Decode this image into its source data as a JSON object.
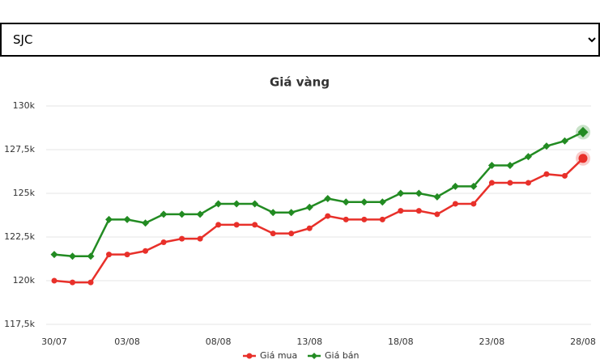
{
  "select": {
    "value": "SJC"
  },
  "chart_data": {
    "type": "line",
    "title": "Giá vàng",
    "categories": [
      "30/07",
      null,
      null,
      null,
      "03/08",
      null,
      null,
      null,
      null,
      "08/08",
      null,
      null,
      null,
      null,
      "13/08",
      null,
      null,
      null,
      null,
      "18/08",
      null,
      null,
      null,
      null,
      "23/08",
      null,
      null,
      null,
      null,
      "28/08"
    ],
    "series": [
      {
        "name": "Giá mua",
        "color": "#e8302a",
        "marker": "circle",
        "values": [
          120.0,
          119.9,
          119.9,
          121.5,
          121.5,
          121.7,
          122.2,
          122.4,
          122.4,
          123.2,
          123.2,
          123.2,
          122.7,
          122.7,
          123.0,
          123.7,
          123.5,
          123.5,
          123.5,
          124.0,
          124.0,
          123.8,
          124.4,
          124.4,
          125.6,
          125.6,
          125.6,
          126.1,
          126.0,
          127.0
        ]
      },
      {
        "name": "Giá bán",
        "color": "#228b22",
        "marker": "diamond",
        "values": [
          121.5,
          121.4,
          121.4,
          123.5,
          123.5,
          123.3,
          123.8,
          123.8,
          123.8,
          124.4,
          124.4,
          124.4,
          123.9,
          123.9,
          124.2,
          124.7,
          124.5,
          124.5,
          124.5,
          125.0,
          125.0,
          124.8,
          125.4,
          125.4,
          126.6,
          126.6,
          127.1,
          127.7,
          128.0,
          128.5
        ]
      }
    ],
    "ylim": [
      117.5,
      130
    ],
    "yticks": [
      {
        "value": 117.5,
        "label": "117,5k"
      },
      {
        "value": 120,
        "label": "120k"
      },
      {
        "value": 122.5,
        "label": "122,5k"
      },
      {
        "value": 125,
        "label": "125k"
      },
      {
        "value": 127.5,
        "label": "127,5k"
      },
      {
        "value": 130,
        "label": "130k"
      }
    ],
    "grid": true,
    "legend": "bottom"
  }
}
